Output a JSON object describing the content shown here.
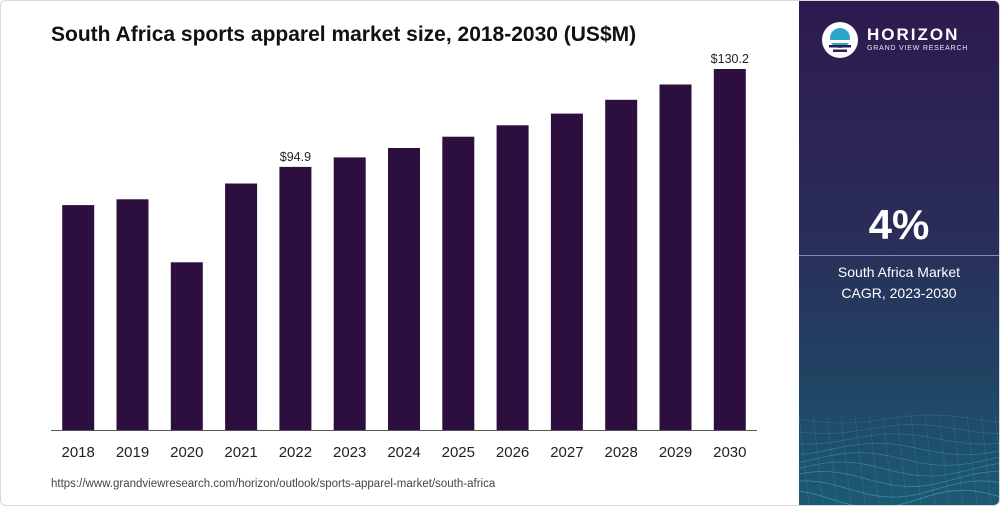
{
  "title": "South Africa sports apparel market size, 2018-2030 (US$M)",
  "source_url": "https://www.grandviewresearch.com/horizon/outlook/sports-apparel-market/south-africa",
  "sidebar": {
    "brand": "HORIZON",
    "tagline": "GRAND VIEW RESEARCH",
    "cagr_value": "4%",
    "cagr_label_line1": "South Africa Market",
    "cagr_label_line2": "CAGR, 2023-2030"
  },
  "colors": {
    "bar": "#2d0f3f",
    "sidebar_top": "#2e1a4f",
    "sidebar_bottom": "#1c5a72"
  },
  "chart_data": {
    "type": "bar",
    "title": "South Africa sports apparel market size, 2018-2030 (US$M)",
    "xlabel": "",
    "ylabel": "",
    "categories": [
      "2018",
      "2019",
      "2020",
      "2021",
      "2022",
      "2023",
      "2024",
      "2025",
      "2026",
      "2027",
      "2028",
      "2029",
      "2030"
    ],
    "values": [
      81.1,
      83.2,
      60.5,
      88.9,
      94.9,
      98.3,
      101.7,
      105.8,
      109.9,
      114.1,
      119.1,
      124.6,
      130.2
    ],
    "data_labels": [
      {
        "index": 4,
        "text": "$94.9"
      },
      {
        "index": 12,
        "text": "$130.2"
      }
    ],
    "ylim": [
      0,
      130.2
    ],
    "grid": false,
    "legend": "none"
  }
}
